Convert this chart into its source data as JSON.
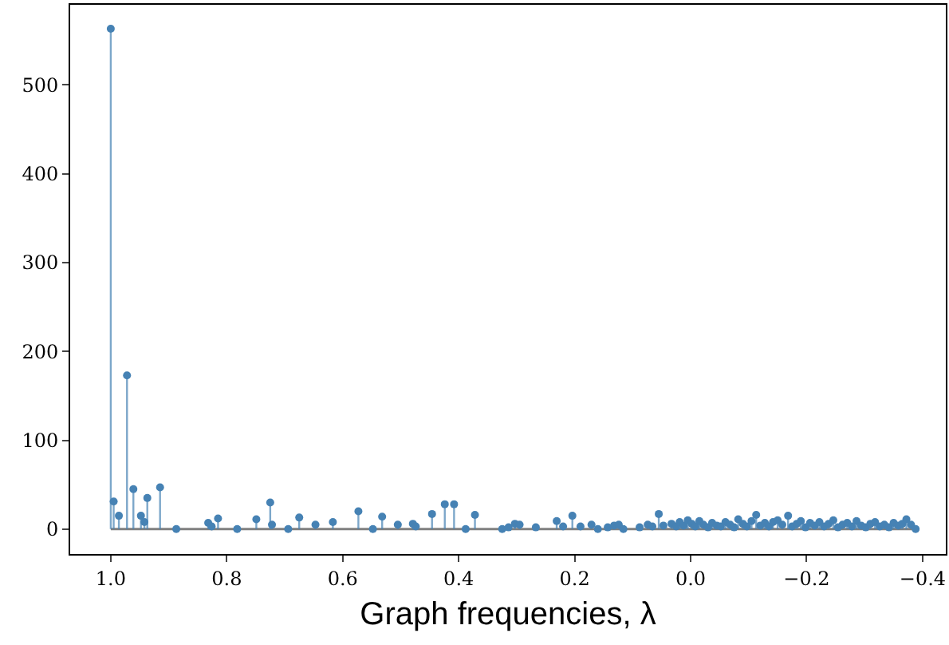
{
  "chart_data": {
    "type": "lollipop",
    "xlabel": "Graph frequencies, λ",
    "x": [
      1.0,
      0.995,
      0.986,
      0.972,
      0.961,
      0.948,
      0.942,
      0.937,
      0.915,
      0.887,
      0.832,
      0.826,
      0.815,
      0.782,
      0.749,
      0.725,
      0.722,
      0.694,
      0.675,
      0.647,
      0.617,
      0.573,
      0.548,
      0.532,
      0.505,
      0.479,
      0.474,
      0.446,
      0.424,
      0.408,
      0.388,
      0.372,
      0.325,
      0.314,
      0.303,
      0.295,
      0.267,
      0.231,
      0.22,
      0.204,
      0.19,
      0.171,
      0.16,
      0.143,
      0.132,
      0.124,
      0.116,
      0.088,
      0.074,
      0.066,
      0.055,
      0.047,
      0.033,
      0.025,
      0.019,
      0.012,
      0.005,
      -0.002,
      -0.008,
      -0.015,
      -0.022,
      -0.03,
      -0.037,
      -0.045,
      -0.052,
      -0.06,
      -0.068,
      -0.075,
      -0.082,
      -0.09,
      -0.097,
      -0.105,
      -0.113,
      -0.12,
      -0.128,
      -0.135,
      -0.142,
      -0.15,
      -0.158,
      -0.168,
      -0.175,
      -0.183,
      -0.19,
      -0.198,
      -0.206,
      -0.214,
      -0.222,
      -0.23,
      -0.238,
      -0.246,
      -0.254,
      -0.262,
      -0.27,
      -0.278,
      -0.286,
      -0.294,
      -0.302,
      -0.31,
      -0.318,
      -0.326,
      -0.334,
      -0.342,
      -0.35,
      -0.358,
      -0.365,
      -0.372,
      -0.38,
      -0.388
    ],
    "values": [
      563,
      31,
      15,
      173,
      45,
      15,
      8,
      35,
      47,
      0,
      7,
      3,
      12,
      0,
      11,
      30,
      5,
      0,
      13,
      5,
      8,
      20,
      0,
      14,
      5,
      6,
      3,
      17,
      28,
      28,
      0,
      16,
      0,
      2,
      6,
      5,
      2,
      9,
      3,
      15,
      3,
      5,
      0,
      2,
      4,
      5,
      0,
      2,
      5,
      3,
      17,
      4,
      6,
      3,
      8,
      4,
      10,
      6,
      3,
      9,
      5,
      2,
      7,
      4,
      3,
      8,
      5,
      2,
      11,
      6,
      3,
      9,
      16,
      4,
      7,
      3,
      8,
      10,
      5,
      15,
      3,
      6,
      9,
      2,
      7,
      4,
      8,
      3,
      6,
      10,
      2,
      5,
      7,
      3,
      9,
      4,
      2,
      6,
      8,
      3,
      5,
      2,
      7,
      4,
      6,
      11,
      5,
      0
    ],
    "color": "#4682b4",
    "marker": "circle",
    "xlim": [
      1.07,
      -0.44
    ],
    "xticks": [
      {
        "value": 1,
        "label": "1.0"
      },
      0.8,
      0.6,
      0.4,
      0.2,
      {
        "value": 0,
        "label": "0.0"
      },
      {
        "value": -0.2,
        "label": "−0.2"
      },
      {
        "value": -0.4,
        "label": "−0.4"
      }
    ],
    "ylim": [
      -28,
      590
    ],
    "yticks": [
      0,
      100,
      200,
      300,
      400,
      500
    ],
    "ref_lines": [
      {
        "axis": "y",
        "value": 0,
        "color": "#808080"
      }
    ],
    "grid": false
  }
}
